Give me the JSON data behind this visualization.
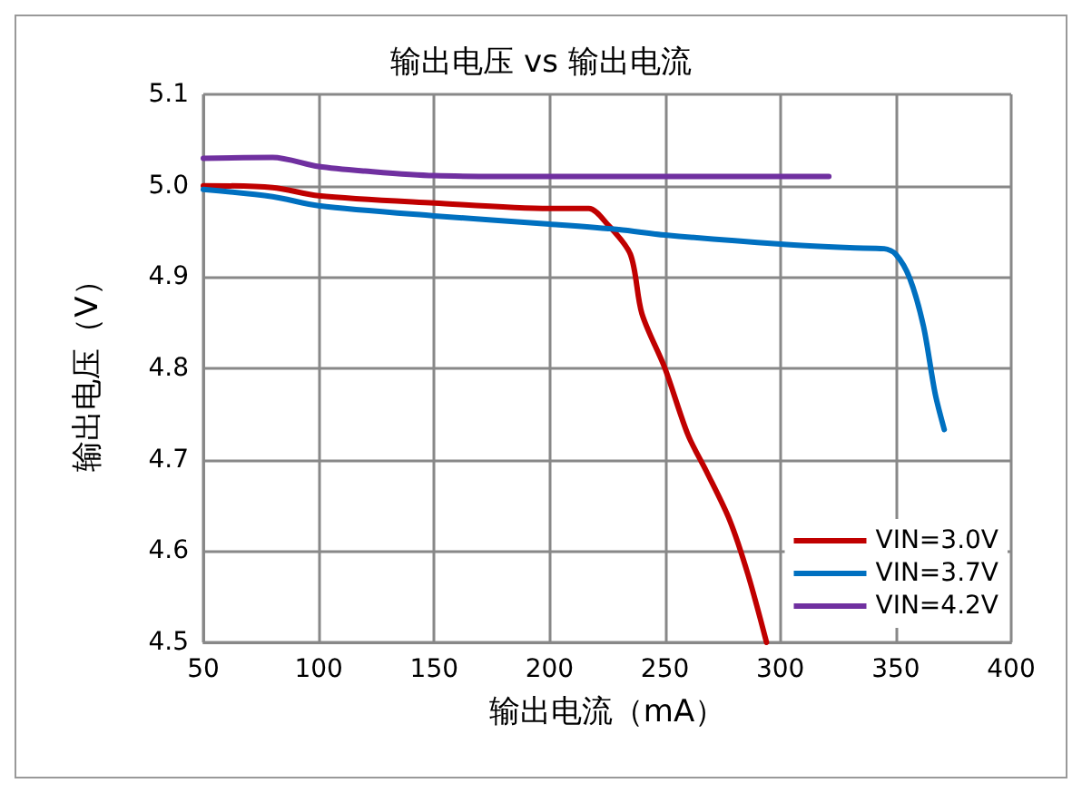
{
  "chart_data": {
    "type": "line",
    "title": "输出电压 vs 输出电流",
    "xlabel": "输出电流（mA）",
    "ylabel": "输出电压（V）",
    "xlim": [
      50,
      400
    ],
    "xticks": [
      50,
      100,
      150,
      200,
      250,
      300,
      350,
      400
    ],
    "ylim": [
      4.5,
      5.1
    ],
    "yticks": [
      4.5,
      4.6,
      4.7,
      4.8,
      4.9,
      {
        "value": 5,
        "label": "5.0"
      },
      5.1
    ],
    "grid": true,
    "legend": "bottom right",
    "marker": "none",
    "line_style": "solid",
    "series": [
      {
        "name": "VIN=3.0V",
        "color": "#c00000",
        "x": [
          50,
          80,
          100,
          150,
          200,
          217,
          225,
          235,
          240,
          250,
          260,
          268,
          278,
          286,
          294
        ],
        "values": [
          5.0,
          4.998,
          4.989,
          4.981,
          4.975,
          4.975,
          4.958,
          4.925,
          4.86,
          4.8,
          4.727,
          4.687,
          4.634,
          4.574,
          4.5
        ]
      },
      {
        "name": "VIN=3.7V",
        "color": "#0070c0",
        "x": [
          50,
          80,
          100,
          150,
          200,
          230,
          250,
          300,
          330,
          345,
          350,
          356,
          362,
          367,
          371
        ],
        "values": [
          4.996,
          4.988,
          4.978,
          4.967,
          4.958,
          4.952,
          4.946,
          4.936,
          4.932,
          4.931,
          4.925,
          4.899,
          4.846,
          4.773,
          4.733
        ]
      },
      {
        "name": "VIN=4.2V",
        "color": "#7030a0",
        "x": [
          50,
          80,
          100,
          120,
          150,
          200,
          321
        ],
        "values": [
          5.03,
          5.031,
          5.021,
          5.016,
          5.011,
          5.01,
          5.01
        ]
      }
    ]
  }
}
